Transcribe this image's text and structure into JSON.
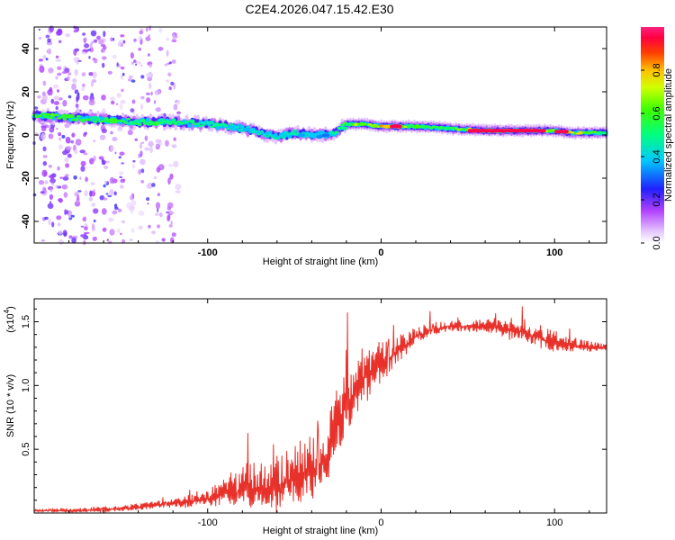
{
  "title": "C2E4.2026.047.15.42.E30",
  "chart_data": [
    {
      "type": "heatmap",
      "ylabel": "Frequency (Hz)",
      "xlabel": "Height of straight line (km)",
      "xlim": [
        -200,
        130
      ],
      "ylim": [
        -50,
        50
      ],
      "xticks": [
        -100,
        0,
        100
      ],
      "yticks": [
        -40,
        -20,
        0,
        20,
        40
      ],
      "colorbar": {
        "label": "Normalized spectral amplitude",
        "range": [
          0,
          1
        ],
        "ticks": [
          "0.0",
          "0.2",
          "0.4",
          "0.6",
          "0.8"
        ]
      },
      "ridge": {
        "x": [
          -200,
          -180,
          -160,
          -140,
          -120,
          -100,
          -90,
          -80,
          -70,
          -60,
          -50,
          -40,
          -30,
          -25,
          -20,
          -10,
          0,
          10,
          20,
          40,
          60,
          80,
          100,
          110,
          120,
          130
        ],
        "freq": [
          9,
          8,
          7,
          6,
          6,
          5,
          4,
          3,
          1,
          -1,
          1,
          0,
          0,
          2,
          5,
          5,
          4,
          4,
          4,
          3,
          2,
          2,
          2,
          1,
          1,
          1
        ],
        "peak": [
          0.65,
          0.6,
          0.6,
          0.55,
          0.55,
          0.5,
          0.5,
          0.45,
          0.45,
          0.45,
          0.45,
          0.4,
          0.4,
          0.55,
          0.6,
          0.75,
          0.85,
          0.9,
          0.6,
          0.6,
          0.95,
          0.95,
          0.75,
          0.9,
          0.7,
          0.6
        ]
      }
    },
    {
      "type": "line",
      "ylabel": "SNR (10 * v/v)",
      "yscale_label": "(x10",
      "yscale_exp": "4",
      "yscale_close": ")",
      "xlabel": "Height of straight line (km)",
      "xlim": [
        -200,
        130
      ],
      "ylim": [
        0,
        1.68
      ],
      "xticks": [
        -100,
        0,
        100
      ],
      "yticks": [
        0.5,
        1.0,
        1.5
      ],
      "ytick_labels": [
        "0.5",
        "1.0",
        "1.5"
      ],
      "series": [
        {
          "name": "SNR",
          "color": "#e8312a",
          "x": [
            -200,
            -180,
            -160,
            -140,
            -120,
            -110,
            -100,
            -90,
            -80,
            -70,
            -60,
            -50,
            -40,
            -35,
            -30,
            -25,
            -20,
            -15,
            -10,
            -5,
            0,
            10,
            20,
            30,
            40,
            50,
            60,
            70,
            80,
            90,
            95,
            100,
            110,
            120,
            130
          ],
          "y": [
            0.02,
            0.02,
            0.03,
            0.05,
            0.08,
            0.1,
            0.12,
            0.18,
            0.23,
            0.22,
            0.26,
            0.32,
            0.38,
            0.42,
            0.55,
            0.75,
            0.9,
            1.0,
            1.1,
            1.15,
            1.2,
            1.3,
            1.4,
            1.45,
            1.47,
            1.47,
            1.48,
            1.46,
            1.44,
            1.4,
            1.37,
            1.35,
            1.33,
            1.31,
            1.3
          ]
        }
      ],
      "noise": {
        "x": [
          -200,
          -120,
          -100,
          -80,
          -60,
          -40,
          -30,
          -20,
          -10,
          0,
          20,
          40,
          60,
          80,
          100,
          130
        ],
        "amp": [
          0.01,
          0.04,
          0.08,
          0.2,
          0.25,
          0.3,
          0.35,
          0.3,
          0.25,
          0.2,
          0.08,
          0.05,
          0.06,
          0.12,
          0.1,
          0.03
        ]
      }
    }
  ]
}
